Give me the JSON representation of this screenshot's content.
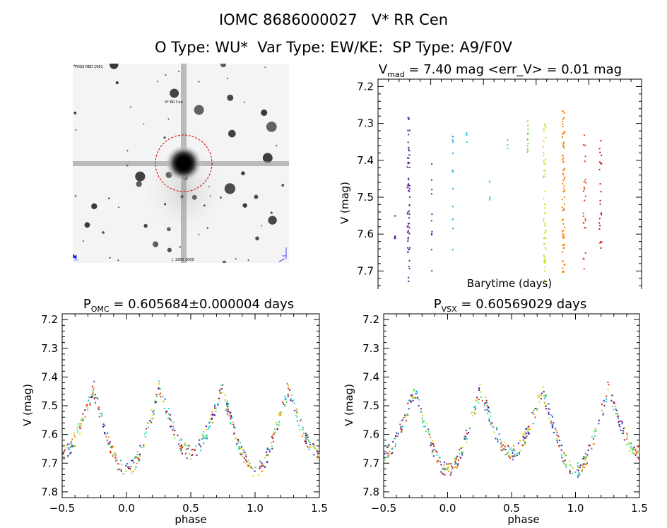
{
  "header": {
    "title": "IOMC 8686000027   V* RR Cen",
    "subtitle": "O Type: WU*  Var Type: EW/KE:  SP Type: A9/F0V"
  },
  "image_panel": {
    "label_top_left": "POSS RED 1961",
    "label_star": "V* RR Cen",
    "label_bottom": "J. 1950 2000"
  },
  "colors": {
    "palette": [
      "#4b0082",
      "#5a1a9a",
      "#3b2fb0",
      "#1f5fd0",
      "#1aa0e0",
      "#22d0d0",
      "#2fe8a0",
      "#3adf55",
      "#80e030",
      "#c8e020",
      "#f0c000",
      "#f08000",
      "#e04010",
      "#d01010"
    ]
  },
  "chart_data": [
    {
      "type": "scatter",
      "name": "lightcurve",
      "title_main": "V",
      "title_sub": "mad",
      "title_rest": " = 7.40 mag <err_V> = 0.01 mag",
      "xlabel": "Barytime (days)",
      "ylabel": "V (mag)",
      "xlim": [
        1000,
        3500
      ],
      "ylim": [
        7.82,
        7.18
      ],
      "xticks": [
        1000,
        1500,
        2000,
        2500,
        3000,
        3500
      ],
      "yticks": [
        7.2,
        7.3,
        7.4,
        7.5,
        7.6,
        7.7,
        7.8
      ],
      "grid": false,
      "groups": [
        {
          "x": 1160,
          "ymin": 7.53,
          "ymax": 7.65,
          "n": 4
        },
        {
          "x": 1290,
          "ymin": 7.28,
          "ymax": 7.73,
          "n": 60
        },
        {
          "x": 1510,
          "ymin": 7.37,
          "ymax": 7.71,
          "n": 12
        },
        {
          "x": 1710,
          "ymin": 7.3,
          "ymax": 7.67,
          "n": 12
        },
        {
          "x": 1840,
          "ymin": 7.31,
          "ymax": 7.38,
          "n": 4
        },
        {
          "x": 2060,
          "ymin": 7.43,
          "ymax": 7.53,
          "n": 5
        },
        {
          "x": 2230,
          "ymin": 7.34,
          "ymax": 7.38,
          "n": 3
        },
        {
          "x": 2420,
          "ymin": 7.29,
          "ymax": 7.38,
          "n": 14
        },
        {
          "x": 2580,
          "ymin": 7.29,
          "ymax": 7.77,
          "n": 60
        },
        {
          "x": 2760,
          "ymin": 7.26,
          "ymax": 7.72,
          "n": 70
        },
        {
          "x": 2960,
          "ymin": 7.33,
          "ymax": 7.73,
          "n": 25
        },
        {
          "x": 3110,
          "ymin": 7.31,
          "ymax": 7.66,
          "n": 22
        }
      ]
    },
    {
      "type": "scatter",
      "name": "phased_omc",
      "title_main": "P",
      "title_sub": "OMC",
      "title_rest": " = 0.605684±0.000004 days",
      "xlabel": "phase",
      "ylabel": "V (mag)",
      "xlim": [
        -0.5,
        1.5
      ],
      "ylim": [
        7.82,
        7.18
      ],
      "xticks": [
        -0.5,
        0.0,
        0.5,
        1.0,
        1.5
      ],
      "xticklabels": [
        "−0.5",
        "0.0",
        "0.5",
        "1.0",
        "1.5"
      ],
      "yticks": [
        7.2,
        7.3,
        7.4,
        7.5,
        7.6,
        7.7,
        7.8
      ],
      "model": {
        "mean": 7.505,
        "primary_depth": 0.235,
        "secondary_depth": 0.175,
        "max_brightness": 7.31
      },
      "scatter_mag": 0.025
    },
    {
      "type": "scatter",
      "name": "phased_vsx",
      "title_main": "P",
      "title_sub": "VSX",
      "title_rest": " = 0.60569029 days",
      "xlabel": "phase",
      "ylabel": "V (mag)",
      "xlim": [
        -0.5,
        1.5
      ],
      "ylim": [
        7.82,
        7.18
      ],
      "xticks": [
        -0.5,
        0.0,
        0.5,
        1.0,
        1.5
      ],
      "xticklabels": [
        "−0.5",
        "0.0",
        "0.5",
        "1.0",
        "1.5"
      ],
      "yticks": [
        7.2,
        7.3,
        7.4,
        7.5,
        7.6,
        7.7,
        7.8
      ],
      "model": {
        "mean": 7.505,
        "primary_depth": 0.235,
        "secondary_depth": 0.175,
        "max_brightness": 7.31
      },
      "scatter_mag": 0.025
    }
  ]
}
